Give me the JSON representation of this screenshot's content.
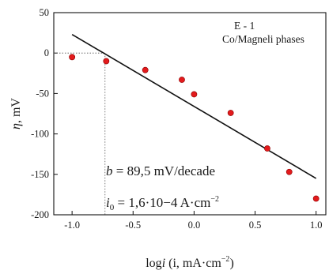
{
  "chart_data": {
    "type": "scatter",
    "xlabel_prefix": "log",
    "xlabel_var": "i",
    "xlabel_rest": " (i, mA·cm",
    "xlabel_exp": "−2",
    "xlabel_close": ")",
    "ylabel_var": "η",
    "ylabel_unit": ", mV",
    "xlim": [
      -1.15,
      1.08
    ],
    "ylim": [
      -200,
      50
    ],
    "xticks": [
      -1.0,
      -0.5,
      0.0,
      0.5,
      1.0
    ],
    "xtick_labels": [
      "-1.0",
      "-0.5",
      "0.0",
      "0.5",
      "1.0"
    ],
    "yticks": [
      -200,
      -150,
      -100,
      -50,
      0,
      50
    ],
    "ytick_labels": [
      "-200",
      "-150",
      "-100",
      "-50",
      "0",
      "50"
    ],
    "grid": false,
    "legend": "none",
    "point_color": "#e31a1c",
    "line_color": "#111111",
    "points": [
      {
        "x": -1.0,
        "y": -5
      },
      {
        "x": -0.72,
        "y": -10
      },
      {
        "x": -0.4,
        "y": -21
      },
      {
        "x": -0.1,
        "y": -33
      },
      {
        "x": 0.0,
        "y": -51
      },
      {
        "x": 0.3,
        "y": -74
      },
      {
        "x": 0.6,
        "y": -118
      },
      {
        "x": 0.78,
        "y": -147
      },
      {
        "x": 1.0,
        "y": -180
      }
    ],
    "fit_line": {
      "x": [
        -1.0,
        1.0
      ],
      "y": [
        23,
        -155
      ]
    },
    "reference_lines": {
      "x0": -0.73,
      "y0": 0
    },
    "annotation_sample": "E - 1",
    "annotation_material": "Co/Magneli phases",
    "b_var": "b",
    "b_text": " = 89,5 mV/decade",
    "i0_var": "i",
    "i0_sub": "0",
    "i0_text": " = 1,6·10−4 A·cm",
    "i0_exp": "−2"
  }
}
